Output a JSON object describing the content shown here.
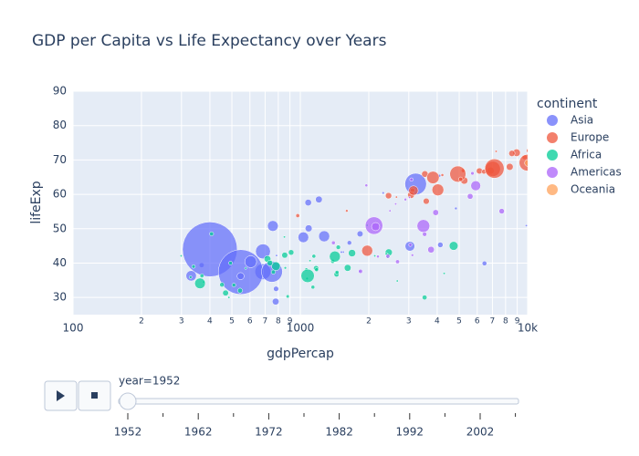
{
  "chart_data": {
    "type": "scatter",
    "title": "GDP per Capita vs Life Expectancy over Years",
    "x_label": "gdpPercap",
    "y_label": "lifeExp",
    "legend_title": "continent",
    "legend_position": "right",
    "x_log": true,
    "grid": true,
    "xlim": [
      100,
      10000
    ],
    "ylim": [
      25,
      90
    ],
    "xticks": [
      100,
      {
        "value": 200,
        "label": "2"
      },
      {
        "value": 300,
        "label": "3"
      },
      {
        "value": 400,
        "label": "4"
      },
      {
        "value": 500,
        "label": "5"
      },
      {
        "value": 600,
        "label": "6"
      },
      {
        "value": 700,
        "label": "7"
      },
      {
        "value": 800,
        "label": "8"
      },
      {
        "value": 900,
        "label": "9"
      },
      1000,
      {
        "value": 2000,
        "label": "2"
      },
      {
        "value": 3000,
        "label": "3"
      },
      {
        "value": 4000,
        "label": "4"
      },
      {
        "value": 5000,
        "label": "5"
      },
      {
        "value": 6000,
        "label": "6"
      },
      {
        "value": 7000,
        "label": "7"
      },
      {
        "value": 8000,
        "label": "8"
      },
      {
        "value": 9000,
        "label": "9"
      },
      {
        "value": 10000,
        "label": "10k"
      }
    ],
    "yticks": [
      30,
      40,
      50,
      60,
      70,
      80,
      90
    ],
    "series": [
      {
        "name": "Asia",
        "color": "#636efa",
        "x": [
          779,
          9867,
          684,
          368,
          400,
          3054,
          547,
          750,
          3035,
          4130,
          4087,
          3217,
          1547,
          1088,
          1031,
          4835,
          1831,
          786,
          331,
          546,
          1828,
          685,
          1273,
          6460,
          2315,
          1083,
          1644,
          1207,
          757,
          605,
          1516,
          782
        ],
        "y": [
          28.8,
          50.9,
          37.5,
          39.4,
          44.0,
          61.0,
          37.4,
          37.5,
          44.9,
          45.3,
          65.4,
          63.0,
          43.2,
          50.1,
          47.5,
          55.9,
          48.5,
          42.2,
          36.3,
          36.2,
          37.6,
          43.4,
          47.8,
          39.9,
          60.4,
          57.6,
          45.9,
          58.5,
          50.8,
          40.4,
          43.2,
          32.5
        ],
        "size": [
          8.4,
          0.12,
          46.9,
          4.7,
          556,
          2.1,
          372,
          82,
          17.3,
          5.4,
          1.6,
          86,
          0.6,
          8.9,
          20.9,
          1.4,
          6.7,
          0.8,
          20,
          9.2,
          0.5,
          41,
          22.4,
          4,
          1.1,
          8,
          3.7,
          8.5,
          21.3,
          26.2,
          1,
          5
        ]
      },
      {
        "name": "Europe",
        "color": "#EF553B",
        "x": [
          1601,
          6137,
          8343,
          974,
          2444,
          3119,
          6876,
          9692,
          6425,
          7030,
          7144,
          3531,
          5264,
          7268,
          5211,
          4931,
          2648,
          8942,
          10095,
          4029,
          3068,
          3145,
          3581,
          5074,
          4215,
          3834,
          8528,
          1969,
          9980
        ],
        "y": [
          55.2,
          66.8,
          68.0,
          53.8,
          59.6,
          61.2,
          66.9,
          70.8,
          66.6,
          67.4,
          67.5,
          65.9,
          64.0,
          72.5,
          66.9,
          65.9,
          59.2,
          72.1,
          72.7,
          61.3,
          59.8,
          61.1,
          58.0,
          64.4,
          65.6,
          64.9,
          71.9,
          43.6,
          69.2
        ],
        "size": [
          1.3,
          6.9,
          8.7,
          2.8,
          7.3,
          3.9,
          9.1,
          4.3,
          4.1,
          42.5,
          69.1,
          7.7,
          9.5,
          0.15,
          2.95,
          47.7,
          0.4,
          10.4,
          3.3,
          25.7,
          8.5,
          16.6,
          6.9,
          3.6,
          1.5,
          28.5,
          7.1,
          22.2,
          50.4
        ]
      },
      {
        "name": "Africa",
        "color": "#00cc96",
        "x": [
          2449,
          3521,
          1063,
          851,
          543,
          339,
          1173,
          1071,
          1179,
          1103,
          781,
          2126,
          1389,
          2670,
          1419,
          376,
          329,
          362,
          4293,
          485,
          911,
          510,
          854,
          299,
          575,
          2388,
          1443,
          369,
          452,
          743,
          1968,
          1688,
          469,
          2424,
          761,
          1077,
          493,
          1450,
          880,
          1136,
          4725,
          1615,
          717,
          859,
          1469,
          735,
          1147,
          407
        ],
        "y": [
          43.1,
          30.0,
          38.2,
          47.6,
          32.0,
          39.0,
          38.5,
          35.5,
          38.1,
          40.7,
          39.1,
          42.1,
          40.5,
          34.8,
          41.9,
          34.5,
          35.9,
          34.1,
          37.0,
          30.0,
          43.1,
          33.6,
          42.3,
          42.1,
          38.5,
          42.7,
          36.7,
          36.3,
          33.7,
          40.5,
          51.0,
          42.9,
          31.3,
          41.7,
          37.4,
          36.3,
          40.0,
          37.3,
          30.3,
          33.0,
          45.0,
          38.6,
          41.2,
          38.6,
          44.6,
          40.0,
          42.0,
          48.5
        ],
        "size": [
          9.3,
          4.2,
          1.7,
          0.44,
          4.5,
          2.4,
          5.0,
          1.3,
          2.7,
          0.15,
          14.1,
          0.85,
          3.0,
          0.06,
          22.2,
          0.2,
          1.4,
          20.9,
          0.42,
          0.28,
          5.6,
          2.7,
          6.5,
          0.75,
          0.86,
          1.0,
          4.8,
          2.9,
          3.8,
          1.0,
          0.5,
          9.9,
          6.4,
          0.49,
          3.4,
          33.1,
          2.5,
          2.8,
          2.1,
          2.5,
          14.3,
          8.5,
          8.3,
          1.2,
          3.6,
          5.8,
          2.7,
          3.1
        ]
      },
      {
        "name": "Americas",
        "color": "#ab63fa",
        "x": [
          5911,
          2677,
          2109,
          3940,
          2144,
          2627,
          5587,
          1398,
          3522,
          3048,
          2428,
          1840,
          2195,
          2899,
          3478,
          3112,
          2480,
          1952,
          3759,
          3082,
          3023,
          5717,
          7690
        ],
        "y": [
          62.5,
          40.4,
          50.9,
          54.7,
          50.6,
          57.2,
          59.4,
          45.9,
          48.4,
          45.3,
          42.0,
          37.6,
          41.9,
          58.5,
          50.8,
          42.3,
          55.2,
          62.6,
          43.9,
          64.3,
          59.1,
          66.1,
          55.1
        ],
        "size": [
          17.9,
          2.9,
          56.6,
          6.4,
          12.4,
          0.9,
          6.0,
          2.5,
          3.5,
          2.0,
          3.1,
          3.2,
          1.5,
          1.4,
          30.1,
          1.2,
          0.94,
          1.6,
          8.0,
          2.2,
          0.66,
          2.25,
          5.4
        ]
      },
      {
        "name": "Oceania",
        "color": "#FFA15A",
        "x": [
          10040,
          10557
        ],
        "y": [
          69.12,
          69.39
        ],
        "size": [
          8.7,
          2.0
        ]
      }
    ],
    "slider": {
      "current_label": "year=1952",
      "steps": [
        "1952",
        null,
        "1962",
        null,
        "1972",
        null,
        "1982",
        null,
        "1992",
        null,
        "2002",
        null
      ]
    }
  }
}
